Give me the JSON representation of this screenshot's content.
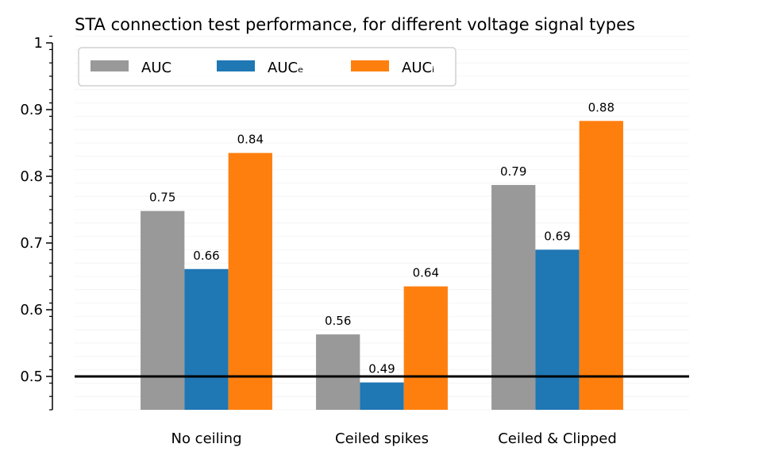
{
  "chart_data": {
    "type": "bar",
    "title": "STA connection test performance, for different voltage signal types",
    "xlabel": "",
    "ylabel": "",
    "categories": [
      "No ceiling",
      "Ceiled spikes",
      "Ceiled & Clipped"
    ],
    "series": [
      {
        "name": "AUC",
        "color": "#999999",
        "values": [
          0.748,
          0.563,
          0.787
        ],
        "labels": [
          "0.75",
          "0.56",
          "0.79"
        ]
      },
      {
        "name": "AUCₑ",
        "color": "#1f77b4",
        "values": [
          0.661,
          0.491,
          0.69
        ],
        "labels": [
          "0.66",
          "0.49",
          "0.69"
        ]
      },
      {
        "name": "AUCᵢ",
        "color": "#ff7f0e",
        "values": [
          0.835,
          0.635,
          0.883
        ],
        "labels": [
          "0.84",
          "0.64",
          "0.88"
        ]
      }
    ],
    "ylim": [
      0.45,
      1.0
    ],
    "yticks": [
      0.5,
      0.6,
      0.7,
      0.8,
      0.9,
      1.0
    ],
    "ytick_labels": [
      "0.5",
      "0.6",
      "0.7",
      "0.8",
      "0.9",
      "1"
    ],
    "minor_tick_step": 0.02,
    "reference_line": 0.5,
    "grid": true,
    "legend": "top-left"
  }
}
